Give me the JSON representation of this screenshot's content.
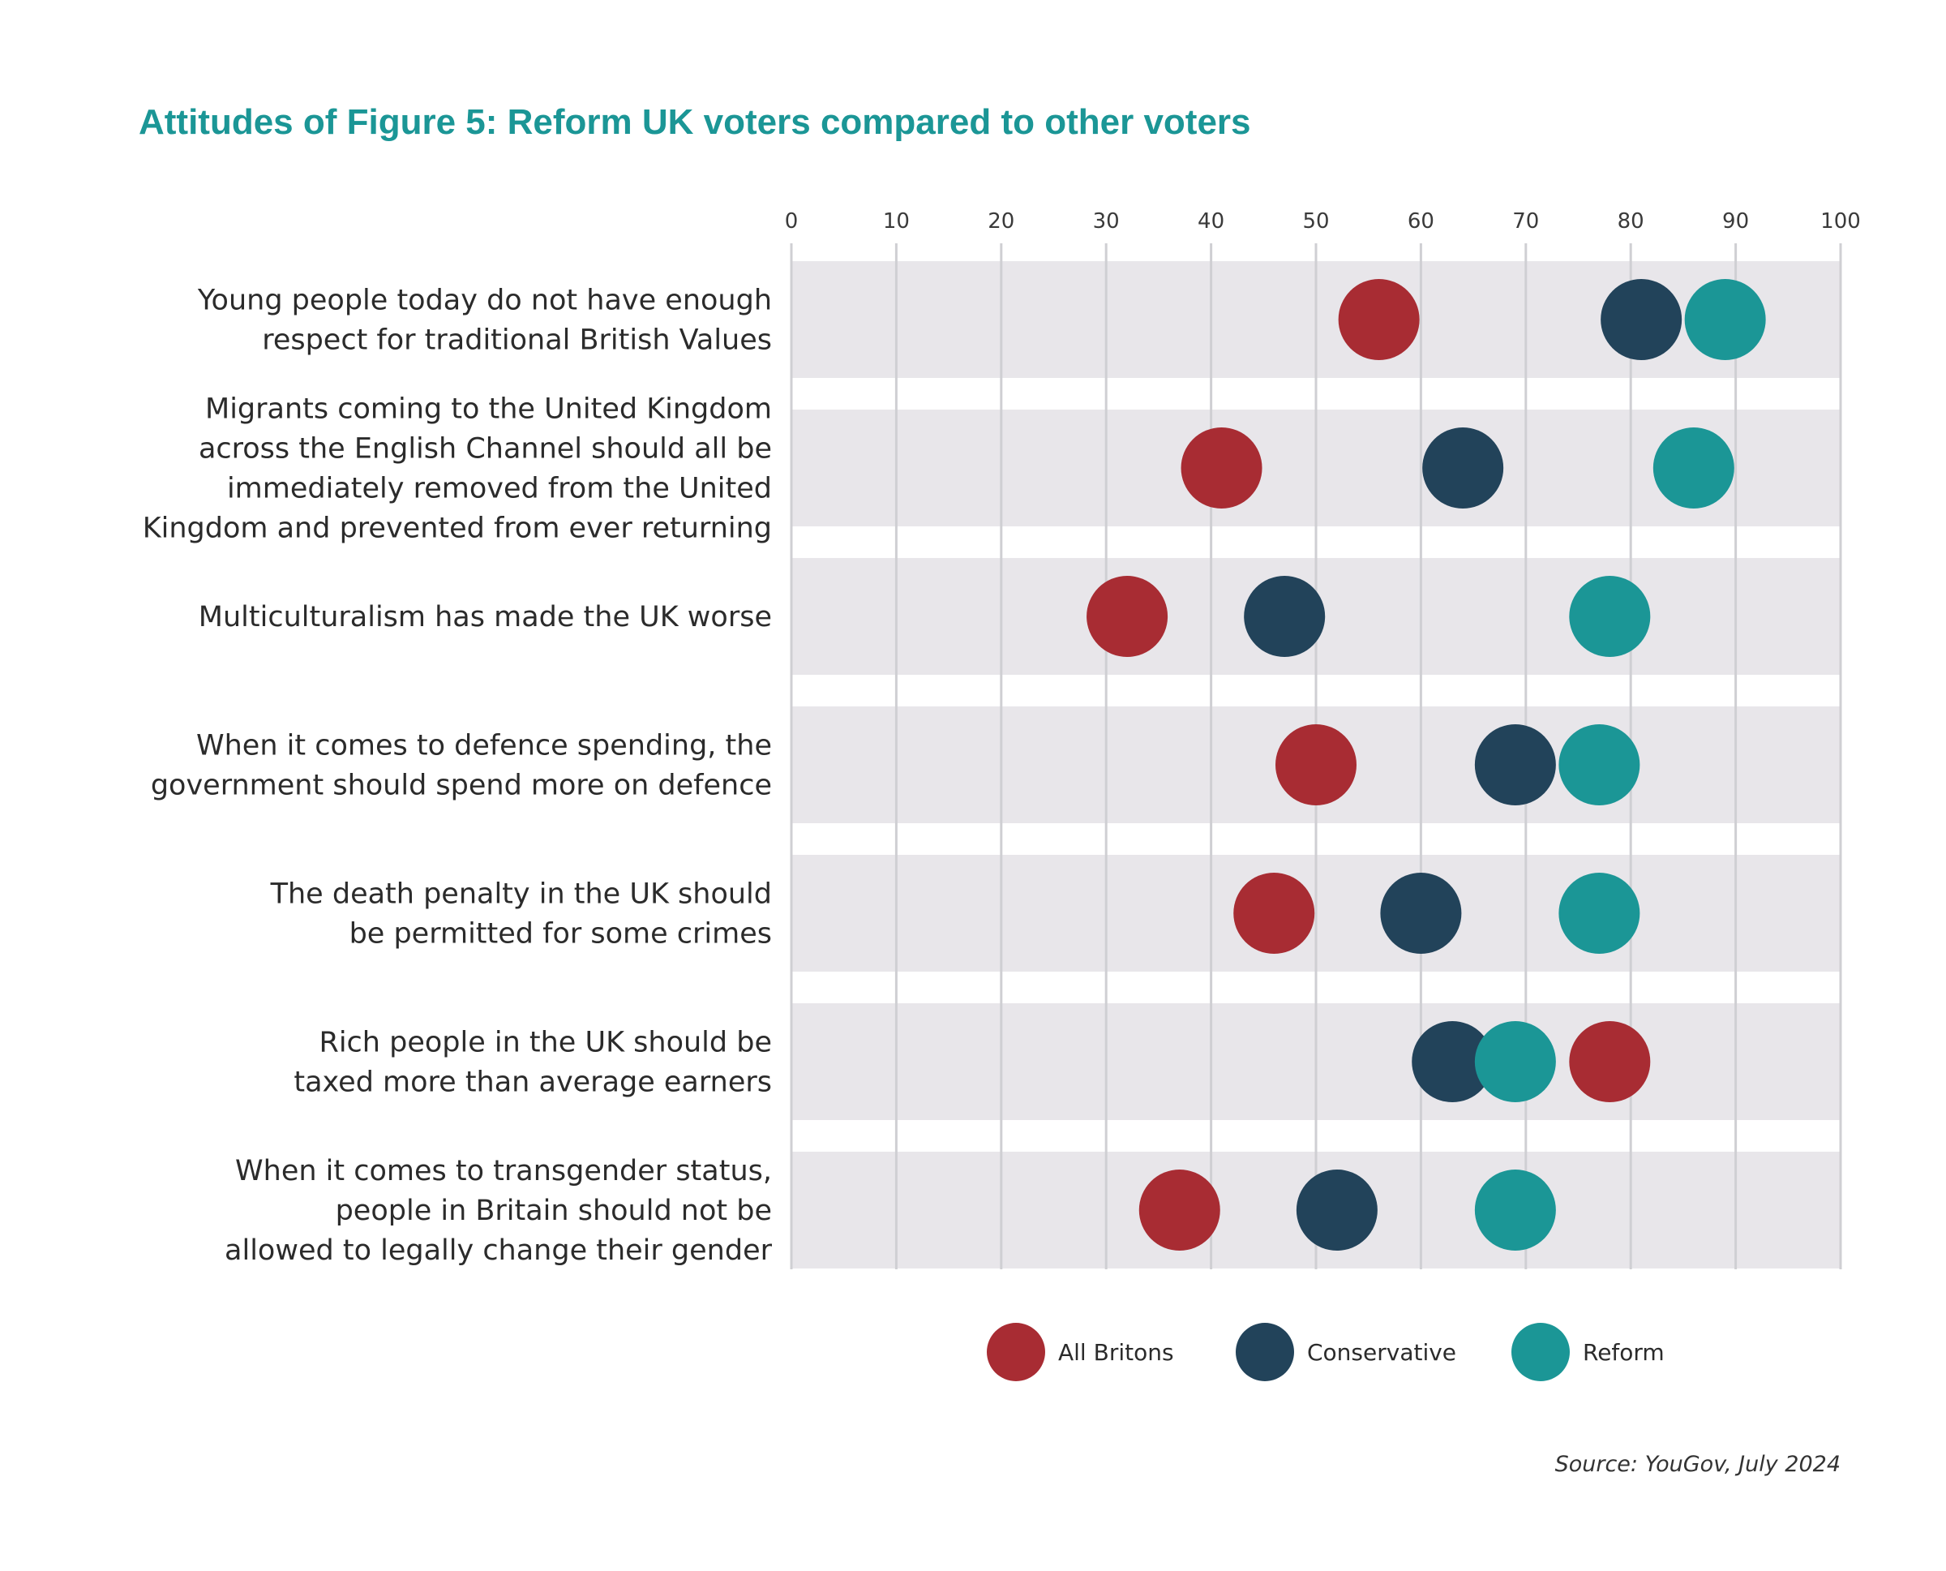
{
  "chart_data": {
    "type": "scatter",
    "title": "Attitudes of Figure 5: Reform UK voters compared to other voters",
    "xlim": [
      0,
      100
    ],
    "xticks": [
      "0",
      "10",
      "20",
      "30",
      "40",
      "50",
      "60",
      "70",
      "80",
      "90",
      "100"
    ],
    "grid": true,
    "legend_position": "bottom",
    "categories": [
      [
        "Young people today do not have enough",
        "respect for traditional British Values"
      ],
      [
        "Migrants coming to the United Kingdom",
        "across the English Channel should all be",
        "immediately removed from the United",
        "Kingdom and prevented from ever returning"
      ],
      [
        "Multiculturalism has made the UK worse"
      ],
      [
        "When it comes to defence spending, the",
        "government should spend more on defence"
      ],
      [
        "The death penalty in the UK should",
        "be permitted for some crimes"
      ],
      [
        "Rich people in the UK should be",
        "taxed more than average earners"
      ],
      [
        "When it comes to transgender status,",
        "people in Britain should not be",
        "allowed to legally change their gender"
      ]
    ],
    "series": [
      {
        "name": "All Britons",
        "color": "#a82c33",
        "values": [
          56,
          41,
          32,
          50,
          46,
          78,
          37
        ]
      },
      {
        "name": "Conservative",
        "color": "#22435a",
        "values": [
          81,
          64,
          47,
          69,
          60,
          63,
          52
        ]
      },
      {
        "name": "Reform",
        "color": "#1b9696",
        "values": [
          89,
          86,
          78,
          77,
          77,
          69,
          69
        ]
      }
    ],
    "draw_order": [
      {
        "category": 5,
        "series": 1
      },
      {
        "category": 5,
        "series": 2
      },
      {
        "category": 5,
        "series": 0
      }
    ]
  },
  "source": "Source: YouGov, July 2024"
}
